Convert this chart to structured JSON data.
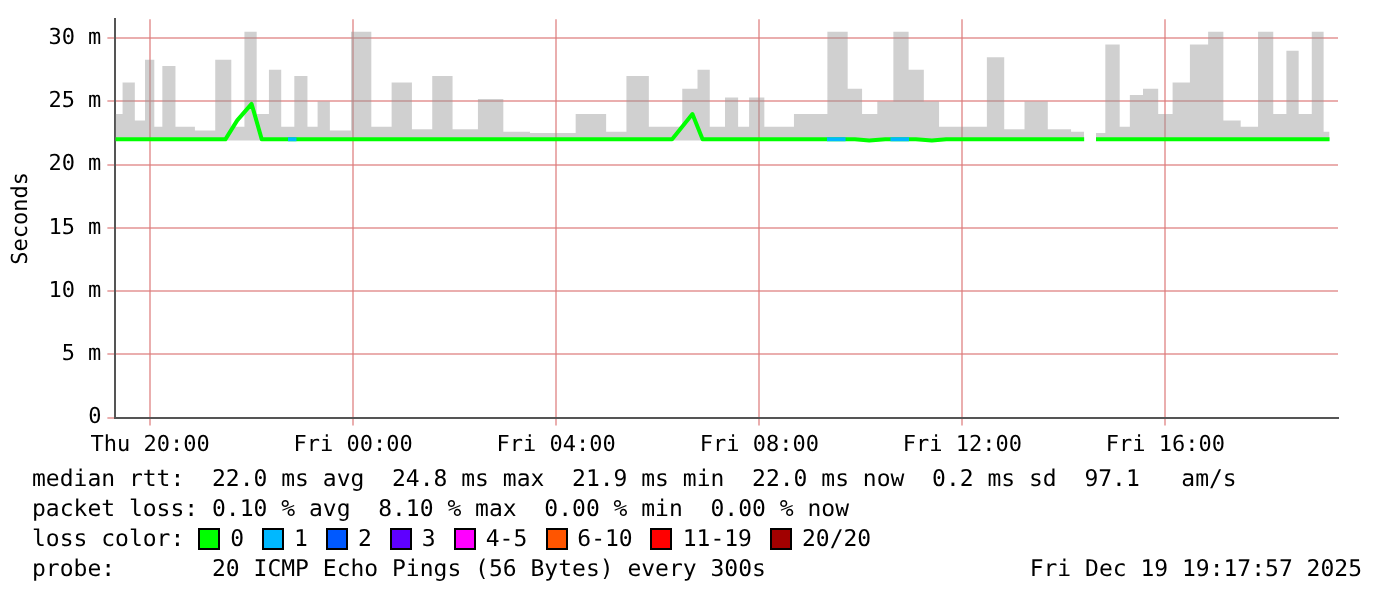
{
  "chart_data": {
    "type": "line",
    "ylabel": "Seconds",
    "legend_title": "loss color:",
    "legend": "bottom",
    "grid": true,
    "marker": "none",
    "line_style": "solid",
    "xlim": [
      "2025-12-18T19:19",
      "2025-12-19T19:24"
    ],
    "ylim": [
      0,
      31.5
    ],
    "xticks": [
      {
        "value": "2025-12-18T20:00",
        "label": "Thu 20:00"
      },
      {
        "value": "2025-12-19T00:00",
        "label": "Fri 00:00"
      },
      {
        "value": "2025-12-19T04:00",
        "label": "Fri 04:00"
      },
      {
        "value": "2025-12-19T08:00",
        "label": "Fri 08:00"
      },
      {
        "value": "2025-12-19T12:00",
        "label": "Fri 12:00"
      },
      {
        "value": "2025-12-19T16:00",
        "label": "Fri 16:00"
      }
    ],
    "yticks": [
      0,
      {
        "value": 5,
        "label": "5 m"
      },
      {
        "value": 10,
        "label": "10 m"
      },
      {
        "value": 15,
        "label": "15 m"
      },
      {
        "value": 20,
        "label": "20 m"
      },
      {
        "value": 25,
        "label": "25 m"
      },
      {
        "value": 30,
        "label": "30 m"
      }
    ],
    "x": [
      "2025-12-18T19:19",
      "2025-12-18T19:36",
      "2025-12-18T19:48",
      "2025-12-18T20:00",
      "2025-12-18T20:10",
      "2025-12-18T20:19",
      "2025-12-18T20:41",
      "2025-12-18T21:05",
      "2025-12-18T21:29",
      "2025-12-18T21:43",
      "2025-12-18T22:00",
      "2025-12-18T22:12",
      "2025-12-18T22:29",
      "2025-12-18T22:41",
      "2025-12-18T23:00",
      "2025-12-18T23:12",
      "2025-12-18T23:24",
      "2025-12-18T23:41",
      "2025-12-19T00:14",
      "2025-12-19T00:29",
      "2025-12-19T01:02",
      "2025-12-19T01:17",
      "2025-12-19T01:50",
      "2025-12-19T02:05",
      "2025-12-19T02:50",
      "2025-12-19T03:05",
      "2025-12-19T03:53",
      "2025-12-19T04:53",
      "2025-12-19T05:05",
      "2025-12-19T05:41",
      "2025-12-19T05:58",
      "2025-12-19T06:17",
      "2025-12-19T06:41",
      "2025-12-19T06:53",
      "2025-12-19T07:10",
      "2025-12-19T07:29",
      "2025-12-19T07:41",
      "2025-12-19T07:55",
      "2025-12-19T08:17",
      "2025-12-19T09:05",
      "2025-12-19T09:36",
      "2025-12-19T09:53",
      "2025-12-19T10:10",
      "2025-12-19T10:29",
      "2025-12-19T10:48",
      "2025-12-19T11:05",
      "2025-12-19T11:24",
      "2025-12-19T11:41",
      "2025-12-19T12:17",
      "2025-12-19T12:41",
      "2025-12-19T12:58",
      "2025-12-19T13:29",
      "2025-12-19T13:53",
      "2025-12-19T14:24",
      "2025-12-19T14:29",
      "2025-12-19T14:38",
      "2025-12-19T15:00",
      "2025-12-19T15:12",
      "2025-12-19T15:24",
      "2025-12-19T15:43",
      "2025-12-19T16:00",
      "2025-12-19T16:17",
      "2025-12-19T16:41",
      "2025-12-19T17:00",
      "2025-12-19T17:17",
      "2025-12-19T17:41",
      "2025-12-19T17:58",
      "2025-12-19T18:17",
      "2025-12-19T18:29",
      "2025-12-19T18:46",
      "2025-12-19T19:00",
      "2025-12-19T19:14"
    ],
    "series": [
      {
        "name": "0",
        "color": "#00ff00",
        "values": [
          22,
          22,
          22,
          22,
          22,
          22,
          22,
          22,
          22,
          23.5,
          24.8,
          22,
          22,
          22,
          22,
          22,
          22,
          22,
          22,
          22,
          22,
          22,
          22,
          22,
          22,
          22,
          22,
          22,
          22,
          22,
          22,
          22,
          24,
          22,
          22,
          22,
          22,
          22,
          22,
          22,
          22,
          22,
          21.9,
          22,
          22,
          22,
          21.9,
          22,
          22,
          22,
          22,
          22,
          22,
          22,
          null,
          22,
          22,
          22,
          22,
          22,
          22,
          22,
          22,
          22,
          22,
          22,
          22,
          22,
          22,
          22,
          22,
          22
        ],
        "lower": [
          21.9,
          21.9,
          21.9,
          21.9,
          21.9,
          21.9,
          21.9,
          21.9,
          21.9,
          21.9,
          21.9,
          21.9,
          21.9,
          21.9,
          21.9,
          21.9,
          21.9,
          21.9,
          21.9,
          21.9,
          21.9,
          21.9,
          21.9,
          21.9,
          21.9,
          21.9,
          21.9,
          21.9,
          21.9,
          21.9,
          21.9,
          21.9,
          21.9,
          21.9,
          21.9,
          21.9,
          21.9,
          21.9,
          21.9,
          21.9,
          21.9,
          21.9,
          21.9,
          21.9,
          21.9,
          21.9,
          21.9,
          21.9,
          21.9,
          21.9,
          21.9,
          21.9,
          21.9,
          21.9,
          null,
          21.9,
          21.9,
          21.9,
          21.9,
          21.9,
          21.9,
          21.9,
          21.9,
          21.9,
          21.9,
          21.9,
          21.9,
          21.9,
          21.9,
          21.9,
          21.9,
          21.9
        ],
        "upper": [
          24,
          26.5,
          23.5,
          28.3,
          23,
          27.8,
          23,
          22.7,
          28.3,
          23,
          30.5,
          24,
          27.5,
          23,
          27,
          23,
          25,
          22.7,
          30.5,
          23,
          26.5,
          22.8,
          27,
          22.8,
          25.2,
          22.6,
          22.5,
          24,
          22.6,
          27,
          23,
          23,
          26,
          27.5,
          23,
          25.3,
          23,
          25.3,
          23,
          24,
          30.5,
          26,
          24,
          25,
          30.5,
          27.5,
          25,
          23,
          23,
          28.5,
          22.8,
          25,
          22.8,
          22.6,
          null,
          22.5,
          29.5,
          23,
          25.5,
          26,
          24,
          26.5,
          29.5,
          30.5,
          23.5,
          23,
          30.5,
          24,
          29,
          24,
          30.5,
          22.6
        ]
      },
      {
        "name": "1",
        "color": "#00b8ff",
        "x": [
          "2025-12-18T22:43",
          "2025-12-18T22:53",
          "2025-12-18T23:00",
          "2025-12-19T09:20",
          "2025-12-19T09:42",
          "2025-12-19T09:50",
          "2025-12-19T10:35",
          "2025-12-19T10:57"
        ],
        "values": [
          22,
          22,
          null,
          22,
          22,
          null,
          22,
          22
        ]
      },
      {
        "name": "2",
        "color": "#0059ff",
        "values": [
          null,
          null,
          null,
          null,
          null,
          null,
          null,
          null,
          null,
          null,
          null,
          null,
          null,
          null,
          null,
          null,
          null,
          null,
          null,
          null,
          null,
          null,
          null,
          null,
          null,
          null,
          null,
          null,
          null,
          null,
          null,
          null,
          null,
          null,
          null,
          null,
          null,
          null,
          null,
          null,
          null,
          null,
          null,
          null,
          null,
          null,
          null,
          null,
          null,
          null,
          null,
          null,
          null,
          null,
          null,
          null,
          null,
          null,
          null,
          null,
          null,
          null,
          null,
          null,
          null,
          null,
          null,
          null,
          null,
          null,
          null,
          null
        ]
      },
      {
        "name": "3",
        "color": "#5e00ff",
        "values": [
          null,
          null,
          null,
          null,
          null,
          null,
          null,
          null,
          null,
          null,
          null,
          null,
          null,
          null,
          null,
          null,
          null,
          null,
          null,
          null,
          null,
          null,
          null,
          null,
          null,
          null,
          null,
          null,
          null,
          null,
          null,
          null,
          null,
          null,
          null,
          null,
          null,
          null,
          null,
          null,
          null,
          null,
          null,
          null,
          null,
          null,
          null,
          null,
          null,
          null,
          null,
          null,
          null,
          null,
          null,
          null,
          null,
          null,
          null,
          null,
          null,
          null,
          null,
          null,
          null,
          null,
          null,
          null,
          null,
          null,
          null,
          null
        ]
      },
      {
        "name": "4-5",
        "color": "#ff00ff",
        "values": [
          null,
          null,
          null,
          null,
          null,
          null,
          null,
          null,
          null,
          null,
          null,
          null,
          null,
          null,
          null,
          null,
          null,
          null,
          null,
          null,
          null,
          null,
          null,
          null,
          null,
          null,
          null,
          null,
          null,
          null,
          null,
          null,
          null,
          null,
          null,
          null,
          null,
          null,
          null,
          null,
          null,
          null,
          null,
          null,
          null,
          null,
          null,
          null,
          null,
          null,
          null,
          null,
          null,
          null,
          null,
          null,
          null,
          null,
          null,
          null,
          null,
          null,
          null,
          null,
          null,
          null,
          null,
          null,
          null,
          null,
          null,
          null
        ]
      },
      {
        "name": "6-10",
        "color": "#ff5500",
        "values": [
          null,
          null,
          null,
          null,
          null,
          null,
          null,
          null,
          null,
          null,
          null,
          null,
          null,
          null,
          null,
          null,
          null,
          null,
          null,
          null,
          null,
          null,
          null,
          null,
          null,
          null,
          null,
          null,
          null,
          null,
          null,
          null,
          null,
          null,
          null,
          null,
          null,
          null,
          null,
          null,
          null,
          null,
          null,
          null,
          null,
          null,
          null,
          null,
          null,
          null,
          null,
          null,
          null,
          null,
          null,
          null,
          null,
          null,
          null,
          null,
          null,
          null,
          null,
          null,
          null,
          null,
          null,
          null,
          null,
          null,
          null,
          null
        ]
      },
      {
        "name": "11-19",
        "color": "#ff0000",
        "values": [
          null,
          null,
          null,
          null,
          null,
          null,
          null,
          null,
          null,
          null,
          null,
          null,
          null,
          null,
          null,
          null,
          null,
          null,
          null,
          null,
          null,
          null,
          null,
          null,
          null,
          null,
          null,
          null,
          null,
          null,
          null,
          null,
          null,
          null,
          null,
          null,
          null,
          null,
          null,
          null,
          null,
          null,
          null,
          null,
          null,
          null,
          null,
          null,
          null,
          null,
          null,
          null,
          null,
          null,
          null,
          null,
          null,
          null,
          null,
          null,
          null,
          null,
          null,
          null,
          null,
          null,
          null,
          null,
          null,
          null,
          null,
          null
        ]
      },
      {
        "name": "20/20",
        "color": "#a10000",
        "values": [
          null,
          null,
          null,
          null,
          null,
          null,
          null,
          null,
          null,
          null,
          null,
          null,
          null,
          null,
          null,
          null,
          null,
          null,
          null,
          null,
          null,
          null,
          null,
          null,
          null,
          null,
          null,
          null,
          null,
          null,
          null,
          null,
          null,
          null,
          null,
          null,
          null,
          null,
          null,
          null,
          null,
          null,
          null,
          null,
          null,
          null,
          null,
          null,
          null,
          null,
          null,
          null,
          null,
          null,
          null,
          null,
          null,
          null,
          null,
          null,
          null,
          null,
          null,
          null,
          null,
          null,
          null,
          null,
          null,
          null,
          null,
          null
        ]
      }
    ],
    "annotations": [
      "median rtt:  22.0 ms avg  24.8 ms max  21.9 ms min  22.0 ms now  0.2 ms sd  97.1   am/s",
      "packet loss: 0.10 % avg  8.10 % max  0.00 % min  0.00 % now",
      "probe:       20 ICMP Echo Pings (56 Bytes) every 300s",
      "Fri Dec 19 19:17:57 2025"
    ]
  }
}
